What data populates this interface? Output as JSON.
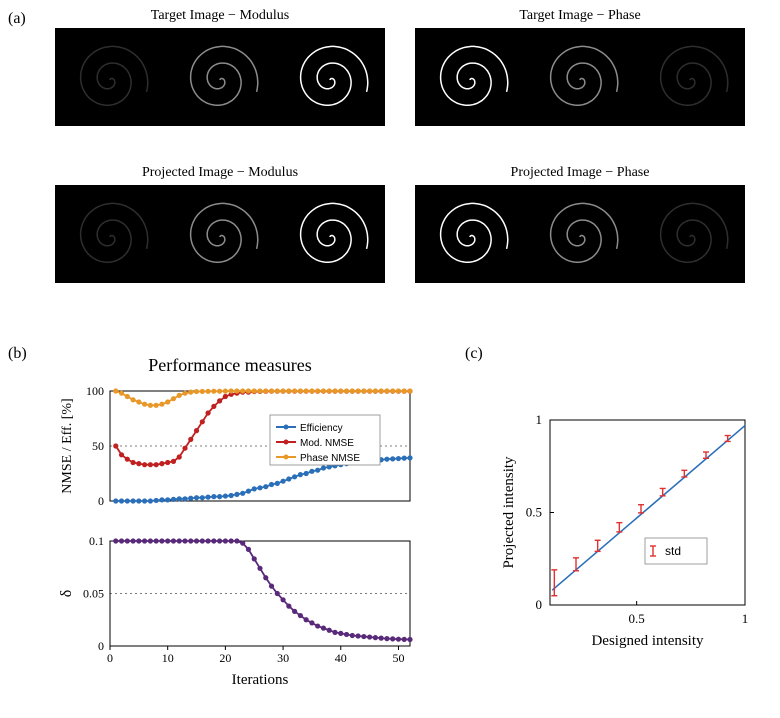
{
  "labels": {
    "a": "(a)",
    "b": "(b)",
    "c": "(c)"
  },
  "panel_a": {
    "titles": {
      "target_modulus": "Target Image − Modulus",
      "target_phase": "Target Image − Phase",
      "projected_modulus": "Projected Image − Modulus",
      "projected_phase": "Projected Image − Phase"
    },
    "bg_color": "#000000",
    "spiral_stroke": "#ffffff",
    "modulus_opacities": [
      0.18,
      0.55,
      1.0
    ],
    "phase_opacities": [
      1.0,
      0.55,
      0.18
    ]
  },
  "panel_b": {
    "title": "Performance measures",
    "xlabel": "Iterations",
    "top": {
      "ylabel": "NMSE / Eff. [%]",
      "ylim": [
        0,
        100
      ],
      "yticks": [
        0,
        50,
        100
      ],
      "xlim": [
        0,
        52
      ],
      "xticks": [
        0,
        10,
        20,
        30,
        40,
        50
      ],
      "grid_color": "#000000",
      "grid_dash": "2,3",
      "series": {
        "efficiency": {
          "label": "Efficiency",
          "color": "#2b6fb8",
          "x": [
            1,
            2,
            3,
            4,
            5,
            6,
            7,
            8,
            9,
            10,
            11,
            12,
            13,
            14,
            15,
            16,
            17,
            18,
            19,
            20,
            21,
            22,
            23,
            24,
            25,
            26,
            27,
            28,
            29,
            30,
            31,
            32,
            33,
            34,
            35,
            36,
            37,
            38,
            39,
            40,
            41,
            42,
            43,
            44,
            45,
            46,
            47,
            48,
            49,
            50,
            51,
            52
          ],
          "y": [
            0,
            0,
            0,
            0,
            0,
            0,
            0,
            0.5,
            1,
            1,
            1.5,
            2,
            2,
            2.5,
            3,
            3,
            3.5,
            4,
            4,
            4.5,
            5,
            6,
            7,
            9,
            11,
            12,
            13,
            15,
            16,
            18,
            20,
            22,
            24,
            25,
            27,
            28,
            30,
            31,
            32,
            33,
            34,
            35,
            35.5,
            36,
            36.5,
            37,
            37.5,
            38,
            38.3,
            38.6,
            39,
            39.2
          ]
        },
        "mod_nmse": {
          "label": "Mod. NMSE",
          "color": "#c02020",
          "x": [
            1,
            2,
            3,
            4,
            5,
            6,
            7,
            8,
            9,
            10,
            11,
            12,
            13,
            14,
            15,
            16,
            17,
            18,
            19,
            20,
            21,
            22,
            23,
            24,
            25,
            26,
            27,
            28,
            29,
            30,
            31,
            32,
            33,
            34,
            35,
            36,
            37,
            38,
            39,
            40,
            41,
            42,
            43,
            44,
            45,
            46,
            47,
            48,
            49,
            50,
            51,
            52
          ],
          "y": [
            50,
            42,
            38,
            35,
            34,
            33,
            33,
            33,
            34,
            35,
            36,
            40,
            48,
            56,
            64,
            72,
            80,
            86,
            91,
            95,
            97,
            98,
            99,
            99,
            99.5,
            99.6,
            99.7,
            99.8,
            99.8,
            99.8,
            99.8,
            99.8,
            99.8,
            99.8,
            99.8,
            99.8,
            99.8,
            99.8,
            99.8,
            99.8,
            99.8,
            99.8,
            99.8,
            99.8,
            99.8,
            99.8,
            99.8,
            99.8,
            99.8,
            99.8,
            99.8,
            99.8
          ]
        },
        "phase_nmse": {
          "label": "Phase NMSE",
          "color": "#e89828",
          "x": [
            1,
            2,
            3,
            4,
            5,
            6,
            7,
            8,
            9,
            10,
            11,
            12,
            13,
            14,
            15,
            16,
            17,
            18,
            19,
            20,
            21,
            22,
            23,
            24,
            25,
            26,
            27,
            28,
            29,
            30,
            31,
            32,
            33,
            34,
            35,
            36,
            37,
            38,
            39,
            40,
            41,
            42,
            43,
            44,
            45,
            46,
            47,
            48,
            49,
            50,
            51,
            52
          ],
          "y": [
            100,
            98,
            95,
            92,
            90,
            88,
            87,
            87,
            88,
            90,
            93,
            96,
            98,
            99,
            99.5,
            99.6,
            99.7,
            99.8,
            99.8,
            99.9,
            100,
            100,
            100,
            100,
            100,
            100,
            100,
            100,
            100,
            100,
            100,
            100,
            100,
            100,
            100,
            100,
            100,
            100,
            100,
            100,
            100,
            100,
            100,
            100,
            100,
            100,
            100,
            100,
            100,
            100,
            100,
            100
          ]
        }
      }
    },
    "bottom": {
      "ylabel": "δ",
      "ylim": [
        0,
        0.1
      ],
      "yticks": [
        0,
        0.05,
        0.1
      ],
      "xlim": [
        0,
        52
      ],
      "xticks": [
        0,
        10,
        20,
        30,
        40,
        50
      ],
      "series": {
        "delta": {
          "color": "#5a2a7a",
          "x": [
            1,
            2,
            3,
            4,
            5,
            6,
            7,
            8,
            9,
            10,
            11,
            12,
            13,
            14,
            15,
            16,
            17,
            18,
            19,
            20,
            21,
            22,
            23,
            24,
            25,
            26,
            27,
            28,
            29,
            30,
            31,
            32,
            33,
            34,
            35,
            36,
            37,
            38,
            39,
            40,
            41,
            42,
            43,
            44,
            45,
            46,
            47,
            48,
            49,
            50,
            51,
            52
          ],
          "y": [
            0.1,
            0.1,
            0.1,
            0.1,
            0.1,
            0.1,
            0.1,
            0.1,
            0.1,
            0.1,
            0.1,
            0.1,
            0.1,
            0.1,
            0.1,
            0.1,
            0.1,
            0.1,
            0.1,
            0.1,
            0.1,
            0.1,
            0.098,
            0.092,
            0.083,
            0.074,
            0.065,
            0.057,
            0.05,
            0.044,
            0.038,
            0.033,
            0.029,
            0.025,
            0.022,
            0.019,
            0.017,
            0.015,
            0.013,
            0.012,
            0.011,
            0.01,
            0.0095,
            0.009,
            0.0085,
            0.008,
            0.0075,
            0.007,
            0.0068,
            0.0065,
            0.0063,
            0.0062
          ]
        }
      }
    }
  },
  "panel_c": {
    "xlabel": "Designed intensity",
    "ylabel": "Projected intensity",
    "xlim": [
      0.1,
      1.0
    ],
    "ylim": [
      0,
      1.0
    ],
    "xticks": [
      0.5,
      1
    ],
    "yticks": [
      0,
      0.5,
      1
    ],
    "line_color": "#2b6fb8",
    "err_color": "#e03030",
    "std_label": "std",
    "line_x": [
      0.11,
      1.0
    ],
    "line_y": [
      0.08,
      0.97
    ],
    "points": {
      "x": [
        0.12,
        0.22,
        0.32,
        0.42,
        0.52,
        0.62,
        0.72,
        0.82,
        0.92
      ],
      "y": [
        0.12,
        0.22,
        0.32,
        0.42,
        0.52,
        0.61,
        0.71,
        0.81,
        0.9
      ],
      "err": [
        0.07,
        0.035,
        0.03,
        0.025,
        0.022,
        0.02,
        0.018,
        0.017,
        0.016
      ]
    }
  }
}
